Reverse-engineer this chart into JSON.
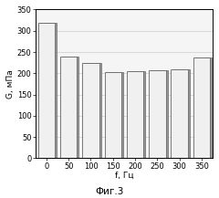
{
  "categories": [
    "0",
    "50",
    "100",
    "150",
    "200",
    "250",
    "300",
    "350"
  ],
  "values": [
    318,
    240,
    224,
    202,
    206,
    207,
    210,
    238
  ],
  "bar_color": "#f0f0f0",
  "bar_edge_color": "#666666",
  "bar_shadow_color": "#999999",
  "bar_shadow_dark": "#777777",
  "xlabel": "f, Гц",
  "ylabel": "G, мПа",
  "caption": "Фиг.3",
  "ylim": [
    0,
    350
  ],
  "yticks": [
    0,
    50,
    100,
    150,
    200,
    250,
    300,
    350
  ],
  "background_color": "#ffffff",
  "plot_bg_color": "#f5f5f5",
  "grid_color": "#cccccc"
}
